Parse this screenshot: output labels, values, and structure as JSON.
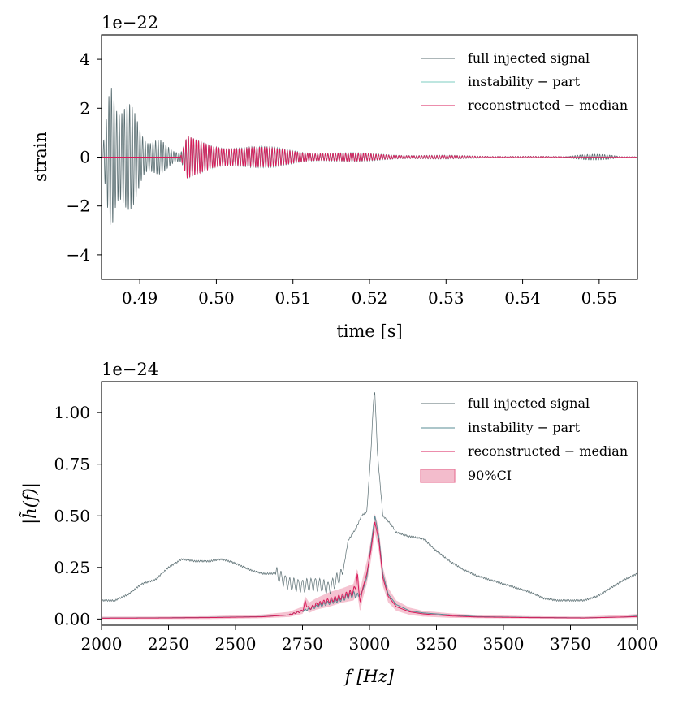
{
  "chart_data": [
    {
      "type": "line",
      "offset_label": "1e−22",
      "xlabel": "time [s]",
      "ylabel": "strain",
      "xlim": [
        0.485,
        0.555
      ],
      "ylim": [
        -5,
        5
      ],
      "xticks": [
        0.49,
        0.5,
        0.51,
        0.52,
        0.53,
        0.54,
        0.55
      ],
      "xtick_labels": [
        "0.49",
        "0.50",
        "0.51",
        "0.52",
        "0.53",
        "0.54",
        "0.55"
      ],
      "yticks": [
        -4,
        -2,
        0,
        2,
        4
      ],
      "ytick_labels": [
        "−4",
        "−2",
        "0",
        "2",
        "4"
      ],
      "legend_position": "top-right",
      "series": [
        {
          "name": "full injected signal",
          "color": "#5a6e72",
          "kind": "burst",
          "t_start": 0.4852,
          "peak_time": 0.4865,
          "amplitude": 4.3,
          "decay_time": 0.0034,
          "secondary_amplitude": 0.95,
          "secondary_start": 0.4953,
          "secondary_decay": 0.014,
          "frequency_hz": 2950
        },
        {
          "name": "instability − part",
          "color": "#7dcdc0",
          "kind": "ringdown",
          "t_start": 0.4953,
          "amplitude": 0.95,
          "decay_time": 0.014,
          "frequency_hz": 3020
        },
        {
          "name": "reconstructed − median",
          "color": "#d81b5a",
          "kind": "ringdown",
          "t_start": 0.4953,
          "amplitude": 0.95,
          "decay_time": 0.013,
          "frequency_hz": 3020
        }
      ]
    },
    {
      "type": "line",
      "offset_label": "1e−24",
      "xlabel": "f [Hz]",
      "ylabel": "|h̃(f)|",
      "xlim": [
        2000,
        4000
      ],
      "ylim": [
        -0.03,
        1.15
      ],
      "xticks": [
        2000,
        2250,
        2500,
        2750,
        3000,
        3250,
        3500,
        3750,
        4000
      ],
      "xtick_labels": [
        "2000",
        "2250",
        "2500",
        "2750",
        "3000",
        "3250",
        "3500",
        "3750",
        "4000"
      ],
      "yticks": [
        0.0,
        0.25,
        0.5,
        0.75,
        1.0
      ],
      "ytick_labels": [
        "0.00",
        "0.25",
        "0.50",
        "0.75",
        "1.00"
      ],
      "legend_position": "top-right",
      "series": [
        {
          "name": "full injected signal",
          "color": "#5a6e72",
          "x": [
            2000,
            2050,
            2100,
            2150,
            2200,
            2250,
            2300,
            2350,
            2400,
            2450,
            2500,
            2550,
            2600,
            2650,
            2700,
            2750,
            2800,
            2850,
            2900,
            2920,
            2950,
            2970,
            2990,
            3005,
            3015,
            3020,
            3030,
            3050,
            3080,
            3100,
            3150,
            3200,
            3250,
            3300,
            3350,
            3400,
            3450,
            3500,
            3550,
            3600,
            3650,
            3700,
            3750,
            3800,
            3850,
            3900,
            3950,
            4000
          ],
          "y": [
            0.09,
            0.09,
            0.12,
            0.17,
            0.19,
            0.25,
            0.29,
            0.28,
            0.28,
            0.29,
            0.27,
            0.24,
            0.22,
            0.22,
            0.17,
            0.16,
            0.17,
            0.15,
            0.22,
            0.38,
            0.44,
            0.5,
            0.52,
            0.8,
            1.06,
            1.1,
            0.8,
            0.5,
            0.46,
            0.42,
            0.4,
            0.39,
            0.33,
            0.28,
            0.24,
            0.21,
            0.19,
            0.17,
            0.15,
            0.13,
            0.1,
            0.09,
            0.09,
            0.09,
            0.11,
            0.15,
            0.19,
            0.22
          ],
          "oscillation_range": [
            2650,
            2900
          ],
          "oscillation_amplitude": 0.03
        },
        {
          "name": "instability − part",
          "color": "#5a8c95",
          "x": [
            2000,
            2200,
            2400,
            2600,
            2700,
            2750,
            2800,
            2850,
            2900,
            2940,
            2960,
            2975,
            2990,
            3005,
            3020,
            3035,
            3050,
            3070,
            3100,
            3150,
            3200,
            3300,
            3400,
            3600,
            3800,
            3950,
            4000
          ],
          "y": [
            0.005,
            0.006,
            0.008,
            0.012,
            0.02,
            0.04,
            0.06,
            0.08,
            0.1,
            0.12,
            0.11,
            0.14,
            0.2,
            0.35,
            0.5,
            0.4,
            0.22,
            0.12,
            0.07,
            0.04,
            0.03,
            0.02,
            0.012,
            0.008,
            0.006,
            0.01,
            0.015
          ]
        },
        {
          "name": "reconstructed − median",
          "color": "#d81b5a",
          "x": [
            2000,
            2200,
            2400,
            2600,
            2700,
            2750,
            2760,
            2775,
            2800,
            2850,
            2900,
            2940,
            2955,
            2965,
            2975,
            2990,
            3005,
            3020,
            3035,
            3050,
            3070,
            3100,
            3150,
            3200,
            3300,
            3400,
            3600,
            3800,
            3950,
            4000
          ],
          "y": [
            0.004,
            0.005,
            0.007,
            0.011,
            0.02,
            0.04,
            0.08,
            0.05,
            0.07,
            0.09,
            0.11,
            0.13,
            0.2,
            0.08,
            0.15,
            0.22,
            0.33,
            0.47,
            0.38,
            0.2,
            0.11,
            0.06,
            0.035,
            0.025,
            0.015,
            0.01,
            0.007,
            0.005,
            0.01,
            0.012
          ]
        },
        {
          "name": "90%CI",
          "color": "#e8799a",
          "kind": "band",
          "x": [
            2000,
            2200,
            2400,
            2600,
            2700,
            2750,
            2760,
            2775,
            2800,
            2850,
            2900,
            2940,
            2955,
            2965,
            2975,
            2990,
            3005,
            3020,
            3035,
            3050,
            3070,
            3100,
            3150,
            3200,
            3300,
            3400,
            3600,
            3800,
            3950,
            4000
          ],
          "lower": [
            0.0,
            0.0,
            0.0,
            0.004,
            0.01,
            0.025,
            0.05,
            0.03,
            0.045,
            0.06,
            0.08,
            0.09,
            0.12,
            0.03,
            0.1,
            0.17,
            0.28,
            0.42,
            0.33,
            0.16,
            0.08,
            0.04,
            0.02,
            0.012,
            0.006,
            0.004,
            0.002,
            0.002,
            0.004,
            0.005
          ],
          "upper": [
            0.012,
            0.012,
            0.014,
            0.022,
            0.035,
            0.06,
            0.11,
            0.08,
            0.1,
            0.13,
            0.15,
            0.17,
            0.25,
            0.14,
            0.2,
            0.28,
            0.38,
            0.51,
            0.44,
            0.25,
            0.15,
            0.09,
            0.055,
            0.04,
            0.028,
            0.02,
            0.014,
            0.012,
            0.02,
            0.025
          ]
        }
      ]
    }
  ]
}
